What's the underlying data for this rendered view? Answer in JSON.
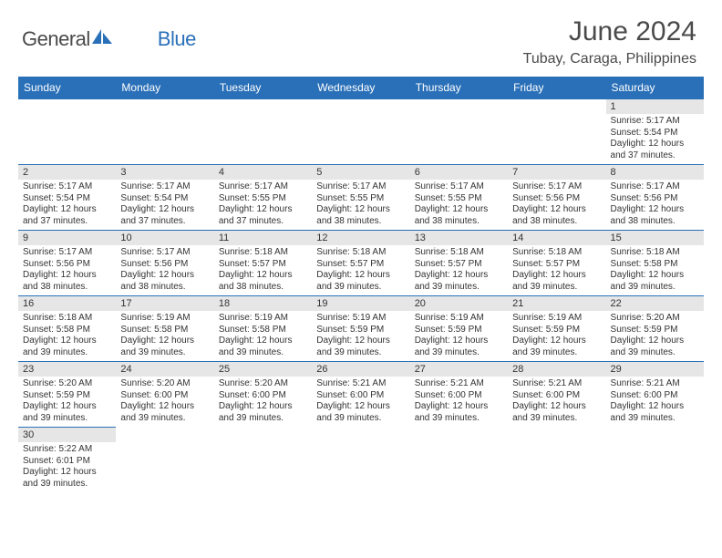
{
  "logo": {
    "text1": "General",
    "text2": "Blue"
  },
  "title": "June 2024",
  "location": "Tubay, Caraga, Philippines",
  "colors": {
    "header_bg": "#2a70b8",
    "header_text": "#ffffff",
    "daynum_bg": "#e6e6e6",
    "border": "#2a70b8",
    "body_text": "#333333",
    "logo_gray": "#4a4a4a",
    "logo_blue": "#2a70b8"
  },
  "fonts": {
    "title_size": 30,
    "location_size": 16,
    "dayhead_size": 12,
    "daynum_size": 11,
    "content_size": 10
  },
  "days": [
    "Sunday",
    "Monday",
    "Tuesday",
    "Wednesday",
    "Thursday",
    "Friday",
    "Saturday"
  ],
  "weeks": [
    [
      null,
      null,
      null,
      null,
      null,
      null,
      {
        "n": "1",
        "sr": "Sunrise: 5:17 AM",
        "ss": "Sunset: 5:54 PM",
        "d1": "Daylight: 12 hours",
        "d2": "and 37 minutes."
      }
    ],
    [
      {
        "n": "2",
        "sr": "Sunrise: 5:17 AM",
        "ss": "Sunset: 5:54 PM",
        "d1": "Daylight: 12 hours",
        "d2": "and 37 minutes."
      },
      {
        "n": "3",
        "sr": "Sunrise: 5:17 AM",
        "ss": "Sunset: 5:54 PM",
        "d1": "Daylight: 12 hours",
        "d2": "and 37 minutes."
      },
      {
        "n": "4",
        "sr": "Sunrise: 5:17 AM",
        "ss": "Sunset: 5:55 PM",
        "d1": "Daylight: 12 hours",
        "d2": "and 37 minutes."
      },
      {
        "n": "5",
        "sr": "Sunrise: 5:17 AM",
        "ss": "Sunset: 5:55 PM",
        "d1": "Daylight: 12 hours",
        "d2": "and 38 minutes."
      },
      {
        "n": "6",
        "sr": "Sunrise: 5:17 AM",
        "ss": "Sunset: 5:55 PM",
        "d1": "Daylight: 12 hours",
        "d2": "and 38 minutes."
      },
      {
        "n": "7",
        "sr": "Sunrise: 5:17 AM",
        "ss": "Sunset: 5:56 PM",
        "d1": "Daylight: 12 hours",
        "d2": "and 38 minutes."
      },
      {
        "n": "8",
        "sr": "Sunrise: 5:17 AM",
        "ss": "Sunset: 5:56 PM",
        "d1": "Daylight: 12 hours",
        "d2": "and 38 minutes."
      }
    ],
    [
      {
        "n": "9",
        "sr": "Sunrise: 5:17 AM",
        "ss": "Sunset: 5:56 PM",
        "d1": "Daylight: 12 hours",
        "d2": "and 38 minutes."
      },
      {
        "n": "10",
        "sr": "Sunrise: 5:17 AM",
        "ss": "Sunset: 5:56 PM",
        "d1": "Daylight: 12 hours",
        "d2": "and 38 minutes."
      },
      {
        "n": "11",
        "sr": "Sunrise: 5:18 AM",
        "ss": "Sunset: 5:57 PM",
        "d1": "Daylight: 12 hours",
        "d2": "and 38 minutes."
      },
      {
        "n": "12",
        "sr": "Sunrise: 5:18 AM",
        "ss": "Sunset: 5:57 PM",
        "d1": "Daylight: 12 hours",
        "d2": "and 39 minutes."
      },
      {
        "n": "13",
        "sr": "Sunrise: 5:18 AM",
        "ss": "Sunset: 5:57 PM",
        "d1": "Daylight: 12 hours",
        "d2": "and 39 minutes."
      },
      {
        "n": "14",
        "sr": "Sunrise: 5:18 AM",
        "ss": "Sunset: 5:57 PM",
        "d1": "Daylight: 12 hours",
        "d2": "and 39 minutes."
      },
      {
        "n": "15",
        "sr": "Sunrise: 5:18 AM",
        "ss": "Sunset: 5:58 PM",
        "d1": "Daylight: 12 hours",
        "d2": "and 39 minutes."
      }
    ],
    [
      {
        "n": "16",
        "sr": "Sunrise: 5:18 AM",
        "ss": "Sunset: 5:58 PM",
        "d1": "Daylight: 12 hours",
        "d2": "and 39 minutes."
      },
      {
        "n": "17",
        "sr": "Sunrise: 5:19 AM",
        "ss": "Sunset: 5:58 PM",
        "d1": "Daylight: 12 hours",
        "d2": "and 39 minutes."
      },
      {
        "n": "18",
        "sr": "Sunrise: 5:19 AM",
        "ss": "Sunset: 5:58 PM",
        "d1": "Daylight: 12 hours",
        "d2": "and 39 minutes."
      },
      {
        "n": "19",
        "sr": "Sunrise: 5:19 AM",
        "ss": "Sunset: 5:59 PM",
        "d1": "Daylight: 12 hours",
        "d2": "and 39 minutes."
      },
      {
        "n": "20",
        "sr": "Sunrise: 5:19 AM",
        "ss": "Sunset: 5:59 PM",
        "d1": "Daylight: 12 hours",
        "d2": "and 39 minutes."
      },
      {
        "n": "21",
        "sr": "Sunrise: 5:19 AM",
        "ss": "Sunset: 5:59 PM",
        "d1": "Daylight: 12 hours",
        "d2": "and 39 minutes."
      },
      {
        "n": "22",
        "sr": "Sunrise: 5:20 AM",
        "ss": "Sunset: 5:59 PM",
        "d1": "Daylight: 12 hours",
        "d2": "and 39 minutes."
      }
    ],
    [
      {
        "n": "23",
        "sr": "Sunrise: 5:20 AM",
        "ss": "Sunset: 5:59 PM",
        "d1": "Daylight: 12 hours",
        "d2": "and 39 minutes."
      },
      {
        "n": "24",
        "sr": "Sunrise: 5:20 AM",
        "ss": "Sunset: 6:00 PM",
        "d1": "Daylight: 12 hours",
        "d2": "and 39 minutes."
      },
      {
        "n": "25",
        "sr": "Sunrise: 5:20 AM",
        "ss": "Sunset: 6:00 PM",
        "d1": "Daylight: 12 hours",
        "d2": "and 39 minutes."
      },
      {
        "n": "26",
        "sr": "Sunrise: 5:21 AM",
        "ss": "Sunset: 6:00 PM",
        "d1": "Daylight: 12 hours",
        "d2": "and 39 minutes."
      },
      {
        "n": "27",
        "sr": "Sunrise: 5:21 AM",
        "ss": "Sunset: 6:00 PM",
        "d1": "Daylight: 12 hours",
        "d2": "and 39 minutes."
      },
      {
        "n": "28",
        "sr": "Sunrise: 5:21 AM",
        "ss": "Sunset: 6:00 PM",
        "d1": "Daylight: 12 hours",
        "d2": "and 39 minutes."
      },
      {
        "n": "29",
        "sr": "Sunrise: 5:21 AM",
        "ss": "Sunset: 6:00 PM",
        "d1": "Daylight: 12 hours",
        "d2": "and 39 minutes."
      }
    ],
    [
      {
        "n": "30",
        "sr": "Sunrise: 5:22 AM",
        "ss": "Sunset: 6:01 PM",
        "d1": "Daylight: 12 hours",
        "d2": "and 39 minutes."
      },
      null,
      null,
      null,
      null,
      null,
      null
    ]
  ]
}
